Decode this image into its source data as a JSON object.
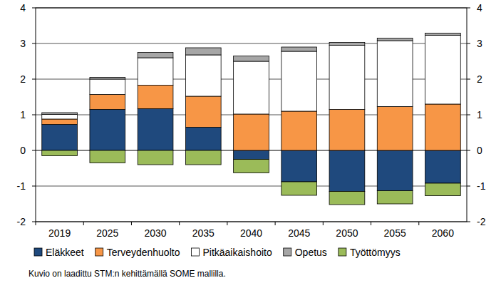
{
  "chart_data": {
    "type": "bar",
    "stacked": true,
    "grid": true,
    "legend": "bottom",
    "note": "Kuvio on laadittu STM:n kehittämällä SOME mallilla.",
    "categories": [
      "2019",
      "2025",
      "2030",
      "2035",
      "2040",
      "2045",
      "2050",
      "2055",
      "2060"
    ],
    "ylim": [
      -2,
      4
    ],
    "yticks": [
      -2,
      -1,
      0,
      1,
      2,
      3,
      4
    ],
    "series": [
      {
        "name": "Eläkkeet",
        "color": "#1f497d",
        "values": [
          0.73,
          1.15,
          1.17,
          0.65,
          -0.25,
          -0.88,
          -1.15,
          -1.13,
          -0.92
        ]
      },
      {
        "name": "Terveydenhuolto",
        "color": "#f79646",
        "values": [
          0.15,
          0.42,
          0.66,
          0.87,
          1.02,
          1.1,
          1.15,
          1.23,
          1.3
        ]
      },
      {
        "name": "Pitkäaikaishoito",
        "color": "#ffffff",
        "values": [
          0.13,
          0.43,
          0.77,
          1.16,
          1.48,
          1.68,
          1.8,
          1.85,
          1.93
        ]
      },
      {
        "name": "Opetus",
        "color": "#a6a6a6",
        "values": [
          0.05,
          0.05,
          0.15,
          0.2,
          0.15,
          0.12,
          0.08,
          0.07,
          0.06
        ]
      },
      {
        "name": "Työttömyys",
        "color": "#9bbb59",
        "values": [
          -0.15,
          -0.35,
          -0.4,
          -0.4,
          -0.38,
          -0.38,
          -0.37,
          -0.37,
          -0.35
        ]
      }
    ]
  }
}
